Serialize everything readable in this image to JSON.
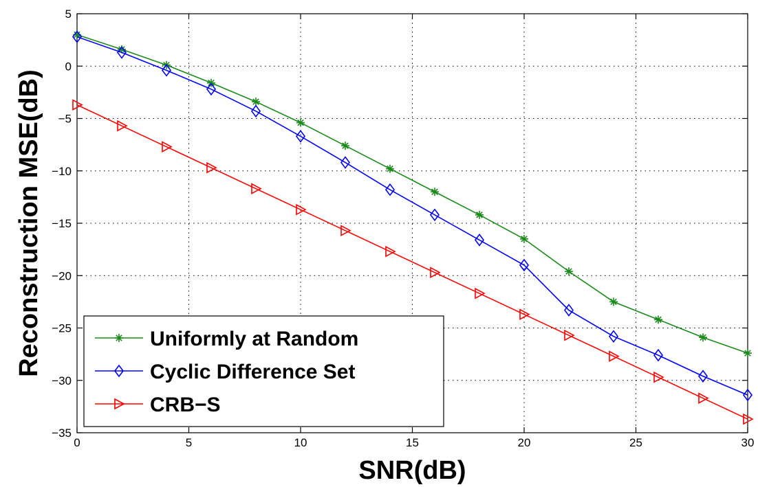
{
  "chart_data": {
    "type": "line",
    "title": "",
    "xlabel": "SNR(dB)",
    "ylabel": "Reconstruction MSE(dB)",
    "xlim": [
      0,
      30
    ],
    "ylim": [
      -35,
      5
    ],
    "xticks": [
      0,
      5,
      10,
      15,
      20,
      25,
      30
    ],
    "yticks": [
      5,
      0,
      -5,
      -10,
      -15,
      -20,
      -25,
      -30,
      -35
    ],
    "grid": true,
    "legend_position": "bottom-left",
    "x": [
      0,
      2,
      4,
      6,
      8,
      10,
      12,
      14,
      16,
      18,
      20,
      22,
      24,
      26,
      28,
      30
    ],
    "series": [
      {
        "name": "Uniformly at Random",
        "color": "#1a8a1a",
        "marker": "asterisk",
        "values": [
          3.0,
          1.6,
          0.1,
          -1.6,
          -3.4,
          -5.4,
          -7.6,
          -9.8,
          -12.0,
          -14.2,
          -16.5,
          -19.6,
          -22.5,
          -24.2,
          -25.9,
          -27.4
        ]
      },
      {
        "name": "Cyclic Difference Set",
        "color": "#0000ff",
        "marker": "diamond",
        "values": [
          2.8,
          1.3,
          -0.4,
          -2.2,
          -4.3,
          -6.7,
          -9.2,
          -11.8,
          -14.2,
          -16.6,
          -19.0,
          -23.3,
          -25.8,
          -27.6,
          -29.6,
          -31.4
        ]
      },
      {
        "name": "CRB−S",
        "color": "#ff0000",
        "marker": "triangle-right",
        "values": [
          -3.7,
          -5.7,
          -7.7,
          -9.7,
          -11.7,
          -13.7,
          -15.7,
          -17.7,
          -19.7,
          -21.7,
          -23.7,
          -25.7,
          -27.7,
          -29.7,
          -31.7,
          -33.7
        ]
      }
    ]
  }
}
